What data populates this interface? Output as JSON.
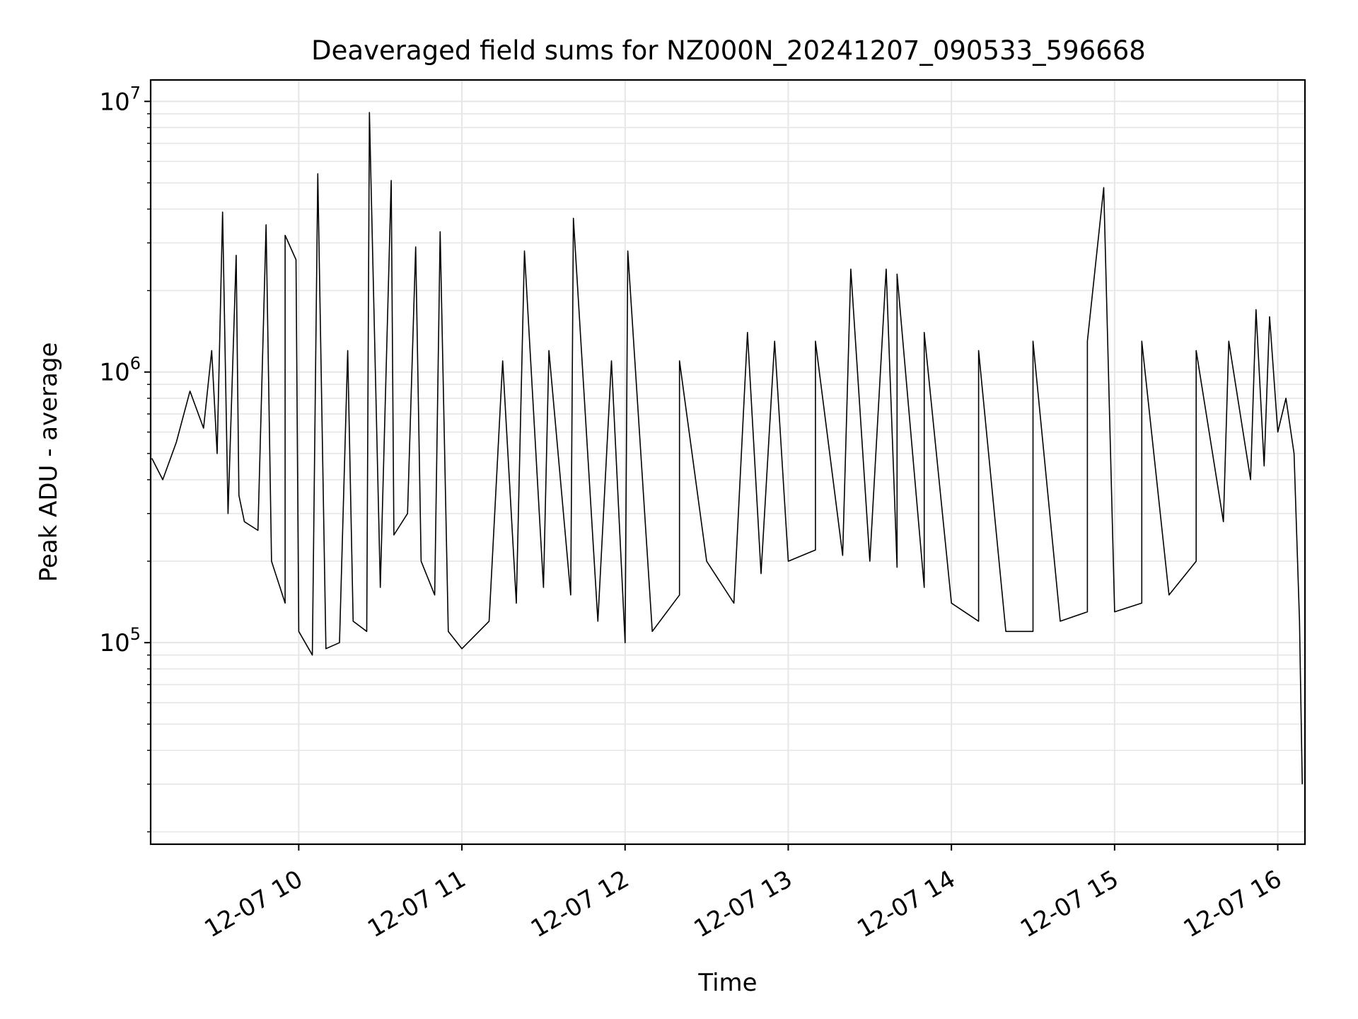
{
  "chart_data": {
    "type": "line",
    "title": "Deaveraged field sums for NZ000N_20241207_090533_596668",
    "xlabel": "Time",
    "ylabel": "Peak ADU - average",
    "yscale": "log",
    "xlim": [
      "2024-12-07 09:05:33",
      "2024-12-07 16:10:00"
    ],
    "ylim": [
      18000,
      12000000
    ],
    "grid": true,
    "line_color": "#000000",
    "grid_color": "#e6e6e6",
    "x_ticks": [
      {
        "value": "2024-12-07 10:00",
        "label": "12-07 10"
      },
      {
        "value": "2024-12-07 11:00",
        "label": "12-07 11"
      },
      {
        "value": "2024-12-07 12:00",
        "label": "12-07 12"
      },
      {
        "value": "2024-12-07 13:00",
        "label": "12-07 13"
      },
      {
        "value": "2024-12-07 14:00",
        "label": "12-07 14"
      },
      {
        "value": "2024-12-07 15:00",
        "label": "12-07 15"
      },
      {
        "value": "2024-12-07 16:00",
        "label": "12-07 16"
      }
    ],
    "y_ticks": [
      {
        "value": 100000,
        "base": "10",
        "exp": "5"
      },
      {
        "value": 1000000,
        "base": "10",
        "exp": "6"
      },
      {
        "value": 10000000,
        "base": "10",
        "exp": "7"
      }
    ],
    "series": [
      {
        "x": [
          "2024-12-07 09:06",
          "2024-12-07 09:10",
          "2024-12-07 09:15",
          "2024-12-07 09:20",
          "2024-12-07 09:25",
          "2024-12-07 09:30",
          "2024-12-07 09:34",
          "2024-12-07 09:38",
          "2024-12-07 09:40",
          "2024-12-07 09:45",
          "2024-12-07 09:50",
          "2024-12-07 09:55",
          "2024-12-07 10:00",
          "2024-12-07 10:05",
          "2024-12-07 10:10",
          "2024-12-07 10:15",
          "2024-12-07 10:20",
          "2024-12-07 10:25",
          "2024-12-07 10:30",
          "2024-12-07 10:35",
          "2024-12-07 10:40",
          "2024-12-07 10:45",
          "2024-12-07 10:50",
          "2024-12-07 10:55",
          "2024-12-07 11:00",
          "2024-12-07 11:10",
          "2024-12-07 11:20",
          "2024-12-07 11:30",
          "2024-12-07 11:40",
          "2024-12-07 11:50",
          "2024-12-07 12:00",
          "2024-12-07 12:10",
          "2024-12-07 12:20",
          "2024-12-07 12:30",
          "2024-12-07 12:40",
          "2024-12-07 12:50",
          "2024-12-07 13:00",
          "2024-12-07 13:10",
          "2024-12-07 13:20",
          "2024-12-07 13:30",
          "2024-12-07 13:40",
          "2024-12-07 13:50",
          "2024-12-07 14:00",
          "2024-12-07 14:10",
          "2024-12-07 14:20",
          "2024-12-07 14:30",
          "2024-12-07 14:40",
          "2024-12-07 14:50",
          "2024-12-07 15:00",
          "2024-12-07 15:10",
          "2024-12-07 15:20",
          "2024-12-07 15:30",
          "2024-12-07 15:40",
          "2024-12-07 15:50",
          "2024-12-07 15:55",
          "2024-12-07 16:00",
          "2024-12-07 16:03",
          "2024-12-07 16:06",
          "2024-12-07 16:08",
          "2024-12-07 16:09"
        ],
        "y": [
          480000,
          400000,
          550000,
          850000,
          620000,
          500000,
          300000,
          350000,
          280000,
          260000,
          200000,
          140000,
          110000,
          90000,
          95000,
          100000,
          120000,
          110000,
          160000,
          250000,
          300000,
          200000,
          150000,
          110000,
          95000,
          120000,
          140000,
          160000,
          150000,
          120000,
          100000,
          110000,
          150000,
          200000,
          140000,
          180000,
          200000,
          220000,
          210000,
          200000,
          190000,
          160000,
          140000,
          120000,
          110000,
          110000,
          120000,
          130000,
          130000,
          140000,
          150000,
          200000,
          280000,
          400000,
          450000,
          600000,
          800000,
          500000,
          120000,
          30000
        ],
        "spikes": [
          {
            "x": "2024-12-07 09:28",
            "y": 1200000
          },
          {
            "x": "2024-12-07 09:32",
            "y": 3900000
          },
          {
            "x": "2024-12-07 09:37",
            "y": 2700000
          },
          {
            "x": "2024-12-07 09:48",
            "y": 3500000
          },
          {
            "x": "2024-12-07 09:55",
            "y": 3200000
          },
          {
            "x": "2024-12-07 09:59",
            "y": 2600000
          },
          {
            "x": "2024-12-07 10:07",
            "y": 5400000
          },
          {
            "x": "2024-12-07 10:18",
            "y": 1200000
          },
          {
            "x": "2024-12-07 10:26",
            "y": 9100000
          },
          {
            "x": "2024-12-07 10:34",
            "y": 5100000
          },
          {
            "x": "2024-12-07 10:43",
            "y": 2900000
          },
          {
            "x": "2024-12-07 10:52",
            "y": 3300000
          },
          {
            "x": "2024-12-07 11:15",
            "y": 1100000
          },
          {
            "x": "2024-12-07 11:23",
            "y": 2800000
          },
          {
            "x": "2024-12-07 11:32",
            "y": 1200000
          },
          {
            "x": "2024-12-07 11:41",
            "y": 3700000
          },
          {
            "x": "2024-12-07 11:55",
            "y": 1100000
          },
          {
            "x": "2024-12-07 12:01",
            "y": 2800000
          },
          {
            "x": "2024-12-07 12:20",
            "y": 1100000
          },
          {
            "x": "2024-12-07 12:45",
            "y": 1400000
          },
          {
            "x": "2024-12-07 12:55",
            "y": 1300000
          },
          {
            "x": "2024-12-07 13:10",
            "y": 1300000
          },
          {
            "x": "2024-12-07 13:23",
            "y": 2400000
          },
          {
            "x": "2024-12-07 13:36",
            "y": 2400000
          },
          {
            "x": "2024-12-07 13:40",
            "y": 2300000
          },
          {
            "x": "2024-12-07 13:50",
            "y": 1400000
          },
          {
            "x": "2024-12-07 14:10",
            "y": 1200000
          },
          {
            "x": "2024-12-07 14:30",
            "y": 1300000
          },
          {
            "x": "2024-12-07 14:50",
            "y": 1300000
          },
          {
            "x": "2024-12-07 14:56",
            "y": 4800000
          },
          {
            "x": "2024-12-07 15:10",
            "y": 1300000
          },
          {
            "x": "2024-12-07 15:30",
            "y": 1200000
          },
          {
            "x": "2024-12-07 15:42",
            "y": 1300000
          },
          {
            "x": "2024-12-07 15:52",
            "y": 1700000
          },
          {
            "x": "2024-12-07 15:57",
            "y": 1600000
          }
        ]
      }
    ]
  }
}
